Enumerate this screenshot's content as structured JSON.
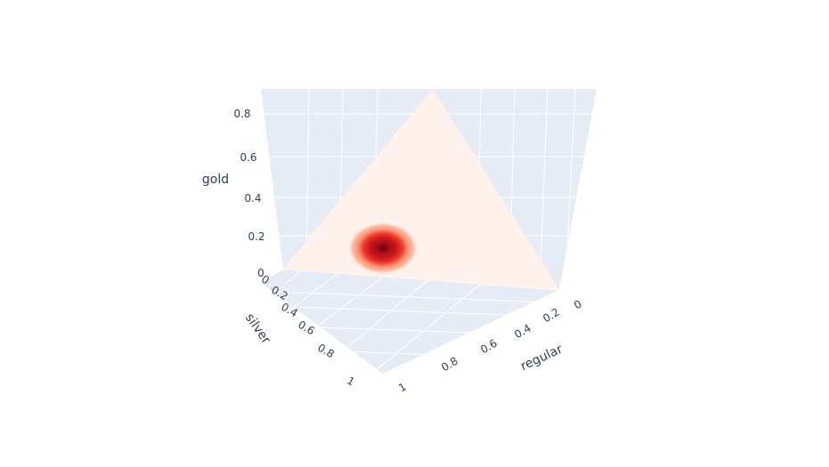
{
  "chart_data": {
    "type": "surface3d-ternary",
    "axes": {
      "gold": {
        "label": "gold",
        "ticks": [
          "0",
          "0.2",
          "0.4",
          "0.6",
          "0.8"
        ]
      },
      "silver": {
        "label": "silver",
        "ticks": [
          "0",
          "0.2",
          "0.4",
          "0.6",
          "0.8",
          "1"
        ]
      },
      "regular": {
        "label": "regular",
        "ticks": [
          "0",
          "0.2",
          "0.4",
          "0.6",
          "0.8",
          "1"
        ]
      }
    },
    "surface": {
      "description_values": "simplex gold + silver + regular = 1",
      "colorscale": [
        "#fff5f0",
        "#fcbba1",
        "#fb6a4a",
        "#cb181d",
        "#67000d"
      ],
      "peak": {
        "regular": 0.45,
        "silver": 0.45,
        "gold": 0.1
      }
    },
    "colors": {
      "scene_bg": "#e5ecf6",
      "grid": "#ffffff",
      "text": "#2a3f5f"
    }
  }
}
